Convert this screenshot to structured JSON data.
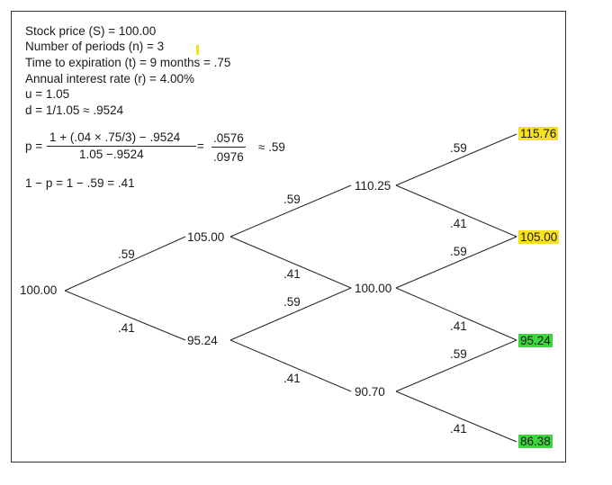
{
  "inputs": {
    "line1": "Stock price (S) = 100.00",
    "line2": "Number of periods (n) = 3",
    "line3": "Time to expiration (t) = 9 months = .75",
    "line4": "Annual interest rate (r) = 4.00%",
    "line5": "u = 1.05",
    "line6": "d = 1/1.05 ≈ .9524"
  },
  "formula": {
    "p_label": "p =",
    "numerator": "1 + (.04 × .75/3) − .9524",
    "denominator": "1.05 −.9524",
    "equals": "=",
    "num2": ".0576",
    "den2": ".0976",
    "approx": "≈ .59",
    "one_minus_p": "1 − p = 1 − .59 = .41"
  },
  "colors": {
    "yellow": "#f5e21a",
    "green": "#3dd63d",
    "cursor_marker": "#f5e21a"
  },
  "tree": {
    "nodes": {
      "n0": "100.00",
      "n1_up": "105.00",
      "n1_down": "95.24",
      "n2_up": "110.25",
      "n2_mid": "100.00",
      "n2_down": "90.70",
      "n3_uu": "115.76",
      "n3_u": "105.00",
      "n3_d": "95.24",
      "n3_dd": "86.38"
    },
    "probs": {
      "p": ".59",
      "q": ".41"
    }
  }
}
